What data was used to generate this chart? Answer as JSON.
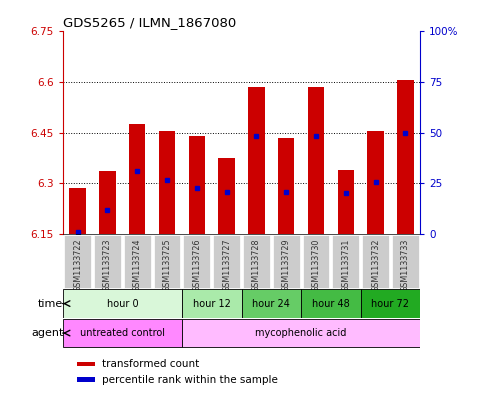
{
  "title": "GDS5265 / ILMN_1867080",
  "samples": [
    "GSM1133722",
    "GSM1133723",
    "GSM1133724",
    "GSM1133725",
    "GSM1133726",
    "GSM1133727",
    "GSM1133728",
    "GSM1133729",
    "GSM1133730",
    "GSM1133731",
    "GSM1133732",
    "GSM1133733"
  ],
  "bar_tops": [
    6.285,
    6.335,
    6.475,
    6.455,
    6.44,
    6.375,
    6.585,
    6.435,
    6.585,
    6.34,
    6.455,
    6.605
  ],
  "bar_bottom": 6.15,
  "percentile_values": [
    6.155,
    6.22,
    6.335,
    6.31,
    6.285,
    6.275,
    6.44,
    6.275,
    6.44,
    6.27,
    6.305,
    6.45
  ],
  "ylim": [
    6.15,
    6.75
  ],
  "yticks_left": [
    6.15,
    6.3,
    6.45,
    6.6,
    6.75
  ],
  "yticks_right": [
    0,
    25,
    50,
    75,
    100
  ],
  "bar_color": "#cc0000",
  "percentile_color": "#0000cc",
  "axis_color_left": "#cc0000",
  "axis_color_right": "#0000cc",
  "time_groups": [
    {
      "label": "hour 0",
      "start": 0,
      "end": 3,
      "color": "#d9f7d9"
    },
    {
      "label": "hour 12",
      "start": 4,
      "end": 5,
      "color": "#aaeaaa"
    },
    {
      "label": "hour 24",
      "start": 6,
      "end": 7,
      "color": "#66cc66"
    },
    {
      "label": "hour 48",
      "start": 8,
      "end": 9,
      "color": "#44bb44"
    },
    {
      "label": "hour 72",
      "start": 10,
      "end": 11,
      "color": "#22aa22"
    }
  ],
  "agent_groups": [
    {
      "label": "untreated control",
      "start": 0,
      "end": 3,
      "color": "#ff88ff"
    },
    {
      "label": "mycophenolic acid",
      "start": 4,
      "end": 11,
      "color": "#ffbbff"
    }
  ],
  "legend_red": "transformed count",
  "legend_blue": "percentile rank within the sample",
  "xlabel_time": "time",
  "xlabel_agent": "agent",
  "tick_label_color": "#333333",
  "background_color": "#ffffff",
  "sample_bg_color": "#cccccc"
}
